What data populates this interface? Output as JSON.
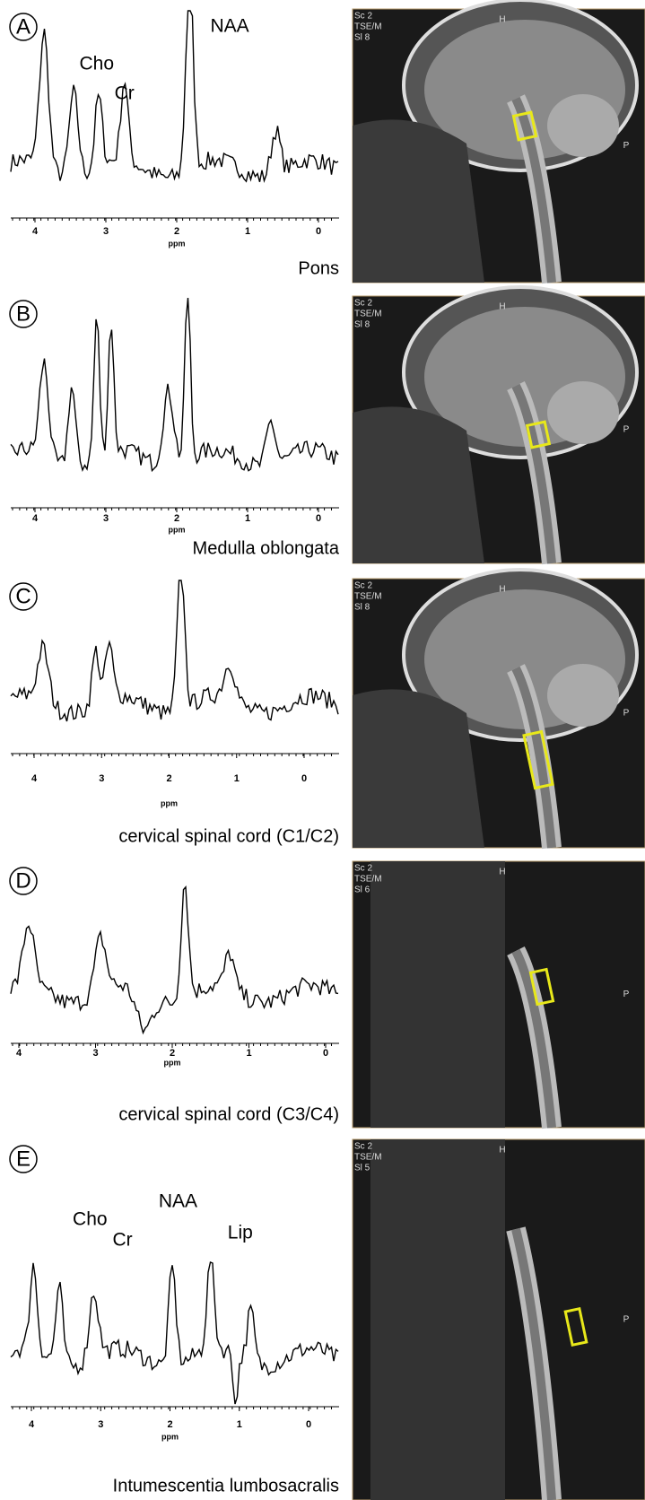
{
  "panels": [
    {
      "label": "A",
      "peaks": [
        "Cho",
        "Cr",
        "NAA"
      ],
      "ticks": [
        4,
        3,
        2,
        1,
        0
      ],
      "axis_label": "ppm",
      "region": "Pons",
      "mri": {
        "lines": [
          "Sc 2",
          "TSE/M",
          "Sl 8"
        ],
        "markers": [
          "H",
          "P"
        ]
      }
    },
    {
      "label": "B",
      "peaks": [],
      "ticks": [
        4,
        3,
        2,
        1,
        0
      ],
      "axis_label": "ppm",
      "region": "Medulla oblongata",
      "mri": {
        "lines": [
          "Sc 2",
          "TSE/M",
          "Sl 8"
        ],
        "markers": [
          "H",
          "P"
        ]
      }
    },
    {
      "label": "C",
      "peaks": [],
      "ticks": [
        4,
        3,
        2,
        1,
        0
      ],
      "axis_label": "ppm",
      "region": "cervical spinal cord (C1/C2)",
      "mri": {
        "lines": [
          "Sc 2",
          "TSE/M",
          "Sl 8"
        ],
        "markers": [
          "H",
          "P"
        ]
      }
    },
    {
      "label": "D",
      "peaks": [],
      "ticks": [
        4,
        3,
        2,
        1,
        0
      ],
      "axis_label": "ppm",
      "region": "cervical spinal cord (C3/C4)",
      "mri": {
        "lines": [
          "Sc 2",
          "TSE/M",
          "Sl 6"
        ],
        "markers": [
          "H",
          "P"
        ]
      }
    },
    {
      "label": "E",
      "peaks": [
        "Cho",
        "Cr",
        "NAA",
        "Lip"
      ],
      "ticks": [
        4,
        3,
        2,
        1,
        0
      ],
      "axis_label": "ppm",
      "region": "Intumescentia lumbosacralis",
      "mri": {
        "lines": [
          "Sc 2",
          "TSE/M",
          "Sl 5"
        ],
        "markers": [
          "H",
          "P"
        ]
      }
    }
  ]
}
